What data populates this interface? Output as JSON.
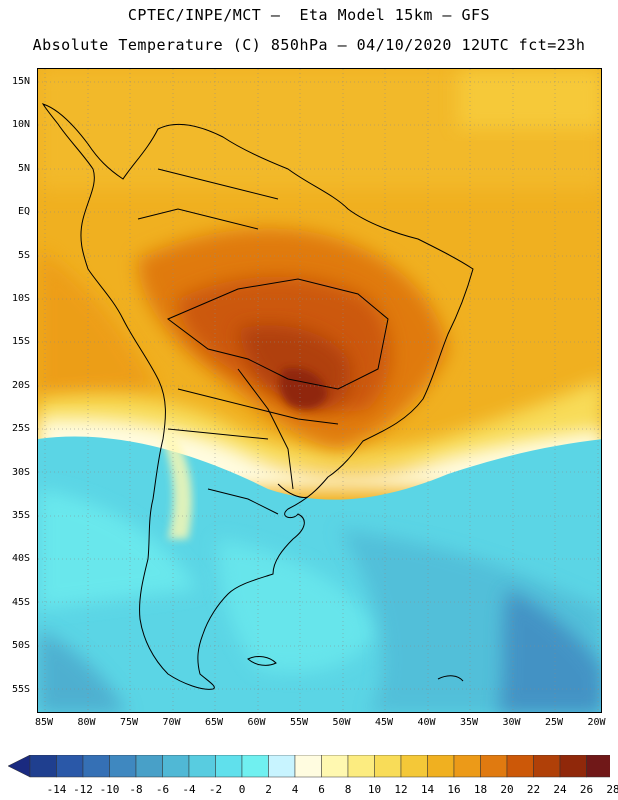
{
  "header": {
    "line1": "CPTEC/INPE/MCT —  Eta Model 15km — GFS",
    "line2": "Absolute Temperature (C) 850hPa — 04/10/2020 12UTC fct=23h"
  },
  "map": {
    "lat_labels": [
      "15N",
      "10N",
      "5N",
      "EQ",
      "5S",
      "10S",
      "15S",
      "20S",
      "25S",
      "30S",
      "35S",
      "40S",
      "45S",
      "50S",
      "55S"
    ],
    "lon_labels": [
      "85W",
      "80W",
      "75W",
      "70W",
      "65W",
      "60W",
      "55W",
      "50W",
      "45W",
      "40W",
      "35W",
      "30W",
      "25W",
      "20W"
    ],
    "ocean_color": "#f0b020",
    "cold_color": "#5bd5e5",
    "hot_color": "#c04808"
  },
  "colorbar": {
    "labels": [
      "-14",
      "-12",
      "-10",
      "-8",
      "-6",
      "-4",
      "-2",
      "0",
      "2",
      "4",
      "6",
      "8",
      "10",
      "12",
      "14",
      "16",
      "18",
      "20",
      "22",
      "24",
      "26",
      "28"
    ],
    "colors": [
      "#1f3f8f",
      "#2a58a8",
      "#3570b5",
      "#3f88c0",
      "#48a0c8",
      "#50b8d5",
      "#58cce0",
      "#60e0ec",
      "#70f0f0",
      "#c8f4ff",
      "#fffce0",
      "#fff8b0",
      "#fcec80",
      "#f8dc58",
      "#f4c838",
      "#f0b020",
      "#ec9a18",
      "#e07a10",
      "#cc5808",
      "#b04008",
      "#90280a",
      "#701818"
    ],
    "low_arrow_color": "#1a2a80",
    "high_arrow_color": "#700820"
  }
}
